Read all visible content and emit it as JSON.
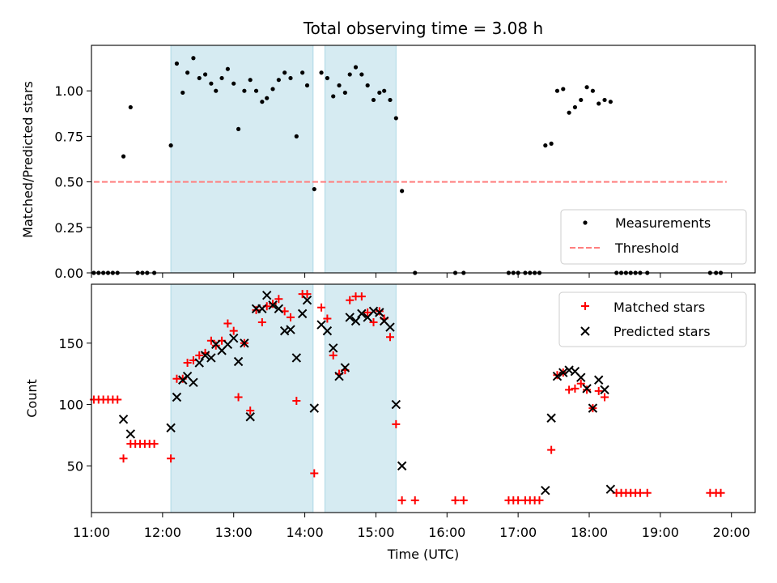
{
  "chart_data": [
    {
      "type": "scatter",
      "title": "Total observing time = 3.08 h",
      "xlabel": "",
      "ylabel": "Matched/Predicted stars",
      "xlim": [
        "11:00",
        "20:20"
      ],
      "ylim": [
        0,
        1.25
      ],
      "yticks": [
        "0.00",
        "0.25",
        "0.50",
        "0.75",
        "1.00"
      ],
      "shaded_intervals": [
        [
          "12:07",
          "14:07"
        ],
        [
          "14:17",
          "15:17"
        ]
      ],
      "legend": {
        "placement": "lower-right",
        "entries": [
          "Measurements",
          "Threshold"
        ]
      },
      "series": [
        {
          "name": "Measurements",
          "marker": "dot",
          "color": "#000000",
          "points": [
            [
              "11:02",
              0
            ],
            [
              "11:06",
              0
            ],
            [
              "11:10",
              0
            ],
            [
              "11:14",
              0
            ],
            [
              "11:18",
              0
            ],
            [
              "11:22",
              0
            ],
            [
              "11:27",
              0.64
            ],
            [
              "11:33",
              0.91
            ],
            [
              "11:39",
              0
            ],
            [
              "11:43",
              0
            ],
            [
              "11:47",
              0
            ],
            [
              "11:53",
              0
            ],
            [
              "12:07",
              0.7
            ],
            [
              "12:12",
              1.15
            ],
            [
              "12:17",
              0.99
            ],
            [
              "12:21",
              1.1
            ],
            [
              "12:26",
              1.18
            ],
            [
              "12:31",
              1.07
            ],
            [
              "12:36",
              1.09
            ],
            [
              "12:41",
              1.04
            ],
            [
              "12:45",
              1.0
            ],
            [
              "12:50",
              1.07
            ],
            [
              "12:55",
              1.12
            ],
            [
              "13:00",
              1.04
            ],
            [
              "13:04",
              0.79
            ],
            [
              "13:09",
              1.0
            ],
            [
              "13:14",
              1.06
            ],
            [
              "13:19",
              1.0
            ],
            [
              "13:24",
              0.94
            ],
            [
              "13:28",
              0.96
            ],
            [
              "13:33",
              1.01
            ],
            [
              "13:38",
              1.06
            ],
            [
              "13:43",
              1.1
            ],
            [
              "13:48",
              1.07
            ],
            [
              "13:53",
              0.75
            ],
            [
              "13:58",
              1.1
            ],
            [
              "14:02",
              1.03
            ],
            [
              "14:08",
              0.46
            ],
            [
              "14:14",
              1.1
            ],
            [
              "14:19",
              1.07
            ],
            [
              "14:24",
              0.97
            ],
            [
              "14:29",
              1.03
            ],
            [
              "14:34",
              0.99
            ],
            [
              "14:38",
              1.09
            ],
            [
              "14:43",
              1.13
            ],
            [
              "14:48",
              1.09
            ],
            [
              "14:53",
              1.03
            ],
            [
              "14:58",
              0.95
            ],
            [
              "15:03",
              0.99
            ],
            [
              "15:07",
              1.0
            ],
            [
              "15:12",
              0.95
            ],
            [
              "15:17",
              0.85
            ],
            [
              "15:22",
              0.45
            ],
            [
              "15:33",
              0
            ],
            [
              "16:07",
              0
            ],
            [
              "16:14",
              0
            ],
            [
              "16:52",
              0
            ],
            [
              "16:56",
              0
            ],
            [
              "17:00",
              0
            ],
            [
              "17:06",
              0
            ],
            [
              "17:10",
              0
            ],
            [
              "17:14",
              0
            ],
            [
              "17:18",
              0
            ],
            [
              "17:23",
              0.7
            ],
            [
              "17:28",
              0.71
            ],
            [
              "17:33",
              1.0
            ],
            [
              "17:38",
              1.01
            ],
            [
              "17:43",
              0.88
            ],
            [
              "17:48",
              0.91
            ],
            [
              "17:53",
              0.95
            ],
            [
              "17:58",
              1.02
            ],
            [
              "18:03",
              1.0
            ],
            [
              "18:08",
              0.93
            ],
            [
              "18:13",
              0.95
            ],
            [
              "18:18",
              0.94
            ],
            [
              "18:23",
              0
            ],
            [
              "18:27",
              0
            ],
            [
              "18:31",
              0
            ],
            [
              "18:35",
              0
            ],
            [
              "18:39",
              0
            ],
            [
              "18:43",
              0
            ],
            [
              "18:49",
              0
            ],
            [
              "19:42",
              0
            ],
            [
              "19:47",
              0
            ],
            [
              "19:51",
              0
            ]
          ]
        },
        {
          "name": "Threshold",
          "marker": "dashed-line",
          "color": "#ff7f7f",
          "points": [
            [
              "11:02",
              0.5
            ],
            [
              "19:56",
              0.5
            ]
          ]
        }
      ]
    },
    {
      "type": "scatter",
      "title": "",
      "xlabel": "Time (UTC)",
      "ylabel": "Count",
      "xlim": [
        "11:00",
        "20:20"
      ],
      "ylim": [
        12,
        198
      ],
      "xticks": [
        "11:00",
        "12:00",
        "13:00",
        "14:00",
        "15:00",
        "16:00",
        "17:00",
        "18:00",
        "19:00",
        "20:00"
      ],
      "yticks": [
        "50",
        "100",
        "150"
      ],
      "shaded_intervals": [
        [
          "12:07",
          "14:07"
        ],
        [
          "14:17",
          "15:17"
        ]
      ],
      "legend": {
        "placement": "upper-right",
        "entries": [
          "Matched stars",
          "Predicted stars"
        ]
      },
      "series": [
        {
          "name": "Matched stars",
          "marker": "plus",
          "color": "#ff0000",
          "points": [
            [
              "11:02",
              104
            ],
            [
              "11:06",
              104
            ],
            [
              "11:10",
              104
            ],
            [
              "11:14",
              104
            ],
            [
              "11:18",
              104
            ],
            [
              "11:22",
              104
            ],
            [
              "11:27",
              56
            ],
            [
              "11:33",
              68
            ],
            [
              "11:37",
              68
            ],
            [
              "11:41",
              68
            ],
            [
              "11:45",
              68
            ],
            [
              "11:49",
              68
            ],
            [
              "11:53",
              68
            ],
            [
              "12:07",
              56
            ],
            [
              "12:12",
              121
            ],
            [
              "12:17",
              121
            ],
            [
              "12:21",
              134
            ],
            [
              "12:26",
              136
            ],
            [
              "12:31",
              140
            ],
            [
              "12:36",
              142
            ],
            [
              "12:41",
              152
            ],
            [
              "12:45",
              148
            ],
            [
              "12:50",
              152
            ],
            [
              "12:55",
              166
            ],
            [
              "13:00",
              160
            ],
            [
              "13:04",
              106
            ],
            [
              "13:09",
              150
            ],
            [
              "13:14",
              95
            ],
            [
              "13:19",
              177
            ],
            [
              "13:24",
              167
            ],
            [
              "13:28",
              180
            ],
            [
              "13:33",
              182
            ],
            [
              "13:38",
              186
            ],
            [
              "13:43",
              176
            ],
            [
              "13:48",
              171
            ],
            [
              "13:53",
              103
            ],
            [
              "13:58",
              190
            ],
            [
              "14:02",
              190
            ],
            [
              "14:08",
              44
            ],
            [
              "14:14",
              179
            ],
            [
              "14:19",
              170
            ],
            [
              "14:24",
              140
            ],
            [
              "14:29",
              125
            ],
            [
              "14:34",
              128
            ],
            [
              "14:38",
              185
            ],
            [
              "14:43",
              188
            ],
            [
              "14:48",
              188
            ],
            [
              "14:53",
              175
            ],
            [
              "14:58",
              167
            ],
            [
              "15:03",
              176
            ],
            [
              "15:07",
              170
            ],
            [
              "15:12",
              155
            ],
            [
              "15:17",
              84
            ],
            [
              "15:22",
              22
            ],
            [
              "15:33",
              22
            ],
            [
              "16:07",
              22
            ],
            [
              "16:14",
              22
            ],
            [
              "16:52",
              22
            ],
            [
              "16:56",
              22
            ],
            [
              "17:00",
              22
            ],
            [
              "17:06",
              22
            ],
            [
              "17:10",
              22
            ],
            [
              "17:14",
              22
            ],
            [
              "17:18",
              22
            ],
            [
              "17:28",
              63
            ],
            [
              "17:33",
              124
            ],
            [
              "17:38",
              126
            ],
            [
              "17:43",
              112
            ],
            [
              "17:48",
              113
            ],
            [
              "17:53",
              117
            ],
            [
              "17:58",
              112
            ],
            [
              "18:03",
              97
            ],
            [
              "18:08",
              111
            ],
            [
              "18:13",
              106
            ],
            [
              "18:23",
              28
            ],
            [
              "18:27",
              28
            ],
            [
              "18:31",
              28
            ],
            [
              "18:35",
              28
            ],
            [
              "18:39",
              28
            ],
            [
              "18:43",
              28
            ],
            [
              "18:49",
              28
            ],
            [
              "19:42",
              28
            ],
            [
              "19:47",
              28
            ],
            [
              "19:51",
              28
            ]
          ]
        },
        {
          "name": "Predicted stars",
          "marker": "x",
          "color": "#000000",
          "points": [
            [
              "11:27",
              88
            ],
            [
              "11:33",
              76
            ],
            [
              "12:07",
              81
            ],
            [
              "12:12",
              106
            ],
            [
              "12:17",
              120
            ],
            [
              "12:21",
              123
            ],
            [
              "12:26",
              118
            ],
            [
              "12:31",
              134
            ],
            [
              "12:36",
              140
            ],
            [
              "12:41",
              138
            ],
            [
              "12:45",
              149
            ],
            [
              "12:50",
              144
            ],
            [
              "12:55",
              149
            ],
            [
              "13:00",
              154
            ],
            [
              "13:04",
              135
            ],
            [
              "13:09",
              150
            ],
            [
              "13:14",
              90
            ],
            [
              "13:19",
              178
            ],
            [
              "13:24",
              178
            ],
            [
              "13:28",
              189
            ],
            [
              "13:33",
              181
            ],
            [
              "13:38",
              178
            ],
            [
              "13:43",
              160
            ],
            [
              "13:48",
              161
            ],
            [
              "13:53",
              138
            ],
            [
              "13:58",
              174
            ],
            [
              "14:02",
              185
            ],
            [
              "14:08",
              97
            ],
            [
              "14:14",
              165
            ],
            [
              "14:19",
              160
            ],
            [
              "14:24",
              146
            ],
            [
              "14:29",
              123
            ],
            [
              "14:34",
              130
            ],
            [
              "14:38",
              171
            ],
            [
              "14:43",
              168
            ],
            [
              "14:48",
              174
            ],
            [
              "14:53",
              171
            ],
            [
              "14:58",
              176
            ],
            [
              "15:03",
              175
            ],
            [
              "15:07",
              168
            ],
            [
              "15:12",
              163
            ],
            [
              "15:17",
              100
            ],
            [
              "15:22",
              50
            ],
            [
              "17:23",
              30
            ],
            [
              "17:28",
              89
            ],
            [
              "17:33",
              123
            ],
            [
              "17:38",
              126
            ],
            [
              "17:43",
              128
            ],
            [
              "17:48",
              127
            ],
            [
              "17:53",
              122
            ],
            [
              "17:58",
              113
            ],
            [
              "18:03",
              97
            ],
            [
              "18:08",
              120
            ],
            [
              "18:13",
              112
            ],
            [
              "18:18",
              31
            ]
          ]
        }
      ]
    }
  ]
}
